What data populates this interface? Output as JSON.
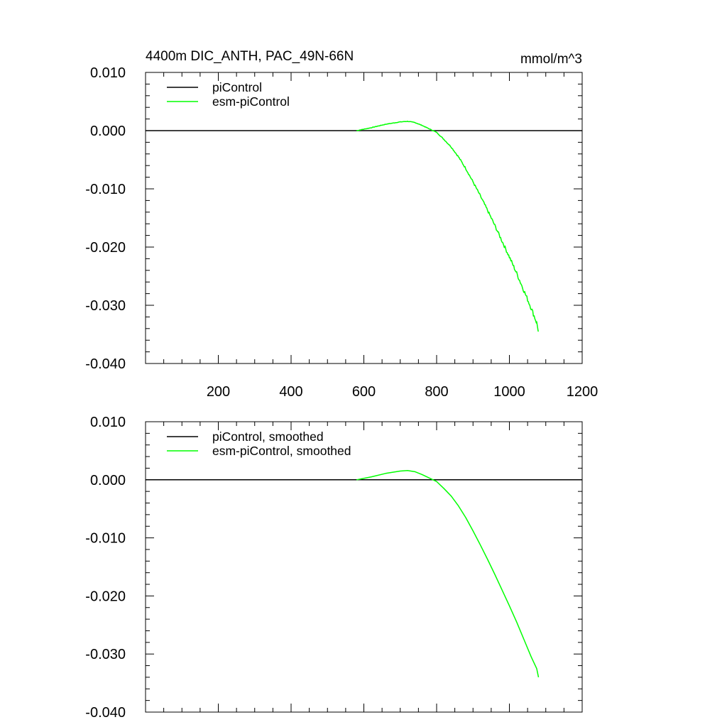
{
  "colors": {
    "piControl": "#000000",
    "esm_piControl": "#00ff00",
    "axes": "#000000"
  },
  "chart_data": [
    {
      "type": "line",
      "title": "4400m DIC_ANTH, PAC_49N-66N",
      "units": "mmol/m^3",
      "xlim": [
        0,
        1200
      ],
      "ylim": [
        -0.04,
        0.01
      ],
      "x_ticks": [
        200,
        400,
        600,
        800,
        1000,
        1200
      ],
      "x_tick_labels": [
        "200",
        "400",
        "600",
        "800",
        "1000",
        "1200"
      ],
      "y_ticks": [
        0.01,
        0.0,
        -0.01,
        -0.02,
        -0.03,
        -0.04
      ],
      "y_tick_labels": [
        "0.010",
        "0.000",
        "-0.010",
        "-0.020",
        "-0.030",
        "-0.040"
      ],
      "legend": [
        "piControl",
        "esm-piControl"
      ],
      "series": [
        {
          "name": "piControl",
          "color": "#000000",
          "x": [
            0,
            1200
          ],
          "y": [
            0.0,
            0.0
          ]
        },
        {
          "name": "esm-piControl",
          "color": "#00ff00",
          "noisy": true,
          "x": [
            580,
            620,
            660,
            700,
            720,
            740,
            760,
            780,
            790,
            800,
            820,
            840,
            860,
            880,
            900,
            920,
            940,
            960,
            980,
            1000,
            1020,
            1040,
            1060,
            1075,
            1080
          ],
          "y": [
            0.0,
            0.0005,
            0.0011,
            0.0015,
            0.0016,
            0.0014,
            0.0009,
            0.0003,
            0.0,
            -0.0003,
            -0.0015,
            -0.0028,
            -0.0045,
            -0.0065,
            -0.0088,
            -0.0112,
            -0.0137,
            -0.0163,
            -0.019,
            -0.0217,
            -0.0245,
            -0.0275,
            -0.0305,
            -0.033,
            -0.0345
          ]
        }
      ]
    },
    {
      "type": "line",
      "title": "",
      "units": "",
      "xlim": [
        0,
        1200
      ],
      "ylim": [
        -0.04,
        0.01
      ],
      "x_ticks": [
        200,
        400,
        600,
        800,
        1000,
        1200
      ],
      "x_tick_labels": [],
      "y_ticks": [
        0.01,
        0.0,
        -0.01,
        -0.02,
        -0.03,
        -0.04
      ],
      "y_tick_labels": [
        "0.010",
        "0.000",
        "-0.010",
        "-0.020",
        "-0.030",
        "-0.040"
      ],
      "legend": [
        "piControl, smoothed",
        "esm-piControl, smoothed"
      ],
      "series": [
        {
          "name": "piControl, smoothed",
          "color": "#000000",
          "x": [
            0,
            1200
          ],
          "y": [
            0.0,
            0.0
          ]
        },
        {
          "name": "esm-piControl, smoothed",
          "color": "#00ff00",
          "noisy": false,
          "x": [
            580,
            620,
            660,
            700,
            720,
            740,
            760,
            780,
            790,
            800,
            820,
            840,
            860,
            880,
            900,
            920,
            940,
            960,
            980,
            1000,
            1020,
            1040,
            1060,
            1075,
            1080
          ],
          "y": [
            0.0,
            0.0005,
            0.0011,
            0.0015,
            0.0016,
            0.0014,
            0.0009,
            0.0003,
            0.0,
            -0.0003,
            -0.0015,
            -0.0028,
            -0.0045,
            -0.0065,
            -0.0088,
            -0.0112,
            -0.0137,
            -0.0163,
            -0.019,
            -0.0217,
            -0.0245,
            -0.0275,
            -0.0305,
            -0.0325,
            -0.034
          ]
        }
      ]
    }
  ]
}
